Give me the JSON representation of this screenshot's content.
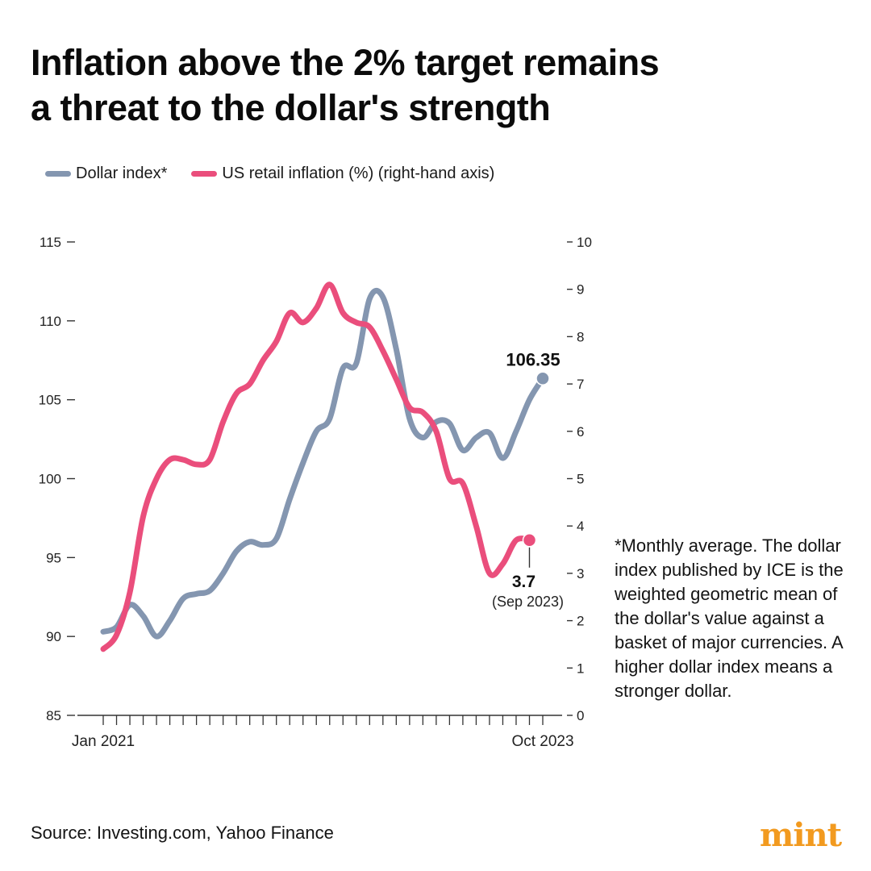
{
  "title_lines": [
    "Inflation above the 2% target remains",
    "a threat to the dollar's strength"
  ],
  "legend": [
    {
      "label": "Dollar index*",
      "color": "#8496b0"
    },
    {
      "label": "US retail inflation (%) (right-hand axis)",
      "color": "#ea4e7c"
    }
  ],
  "footnote": "*Monthly average. The dollar index published by ICE is the weighted geometric mean of the dollar's value against a basket of major currencies. A higher dollar index means a stronger dollar.",
  "source": "Source: Investing.com, Yahoo Finance",
  "brand": "mint",
  "brand_color": "#f29a1f",
  "chart_data": {
    "type": "line",
    "x_months": [
      "Jan 2021",
      "Feb 2021",
      "Mar 2021",
      "Apr 2021",
      "May 2021",
      "Jun 2021",
      "Jul 2021",
      "Aug 2021",
      "Sep 2021",
      "Oct 2021",
      "Nov 2021",
      "Dec 2021",
      "Jan 2022",
      "Feb 2022",
      "Mar 2022",
      "Apr 2022",
      "May 2022",
      "Jun 2022",
      "Jul 2022",
      "Aug 2022",
      "Sep 2022",
      "Oct 2022",
      "Nov 2022",
      "Dec 2022",
      "Jan 2023",
      "Feb 2023",
      "Mar 2023",
      "Apr 2023",
      "May 2023",
      "Jun 2023",
      "Jul 2023",
      "Aug 2023",
      "Sep 2023",
      "Oct 2023"
    ],
    "x_tick_labels": [
      {
        "index": 0,
        "label": "Jan 2021"
      },
      {
        "index": 33,
        "label": "Oct 2023"
      }
    ],
    "left_axis": {
      "min": 85,
      "max": 115,
      "ticks": [
        85,
        90,
        95,
        100,
        105,
        110,
        115
      ]
    },
    "right_axis": {
      "min": 0,
      "max": 10,
      "ticks": [
        0,
        1,
        2,
        3,
        4,
        5,
        6,
        7,
        8,
        9,
        10
      ]
    },
    "series": [
      {
        "name": "Dollar index*",
        "axis": "left",
        "color": "#8496b0",
        "values": [
          90.3,
          90.6,
          92.0,
          91.3,
          90.0,
          91.0,
          92.4,
          92.7,
          92.9,
          94.0,
          95.4,
          96.0,
          95.8,
          96.2,
          98.7,
          101.0,
          103.0,
          103.8,
          107.0,
          107.3,
          111.4,
          111.5,
          108.2,
          103.8,
          102.6,
          103.6,
          103.5,
          101.8,
          102.6,
          102.9,
          101.3,
          103.0,
          105.0,
          106.35
        ]
      },
      {
        "name": "US retail inflation (%) (right-hand axis)",
        "axis": "right",
        "color": "#ea4e7c",
        "values": [
          1.4,
          1.7,
          2.6,
          4.2,
          5.0,
          5.4,
          5.4,
          5.3,
          5.4,
          6.2,
          6.8,
          7.0,
          7.5,
          7.9,
          8.5,
          8.3,
          8.6,
          9.1,
          8.5,
          8.3,
          8.2,
          7.7,
          7.1,
          6.5,
          6.4,
          6.0,
          5.0,
          4.9,
          4.0,
          3.0,
          3.2,
          3.7,
          3.7
        ]
      }
    ],
    "annotations": [
      {
        "series": 0,
        "index": 33,
        "label": "106.35"
      },
      {
        "series": 1,
        "index": 32,
        "label": "3.7",
        "sublabel": "(Sep 2023)"
      }
    ],
    "grid": false
  }
}
